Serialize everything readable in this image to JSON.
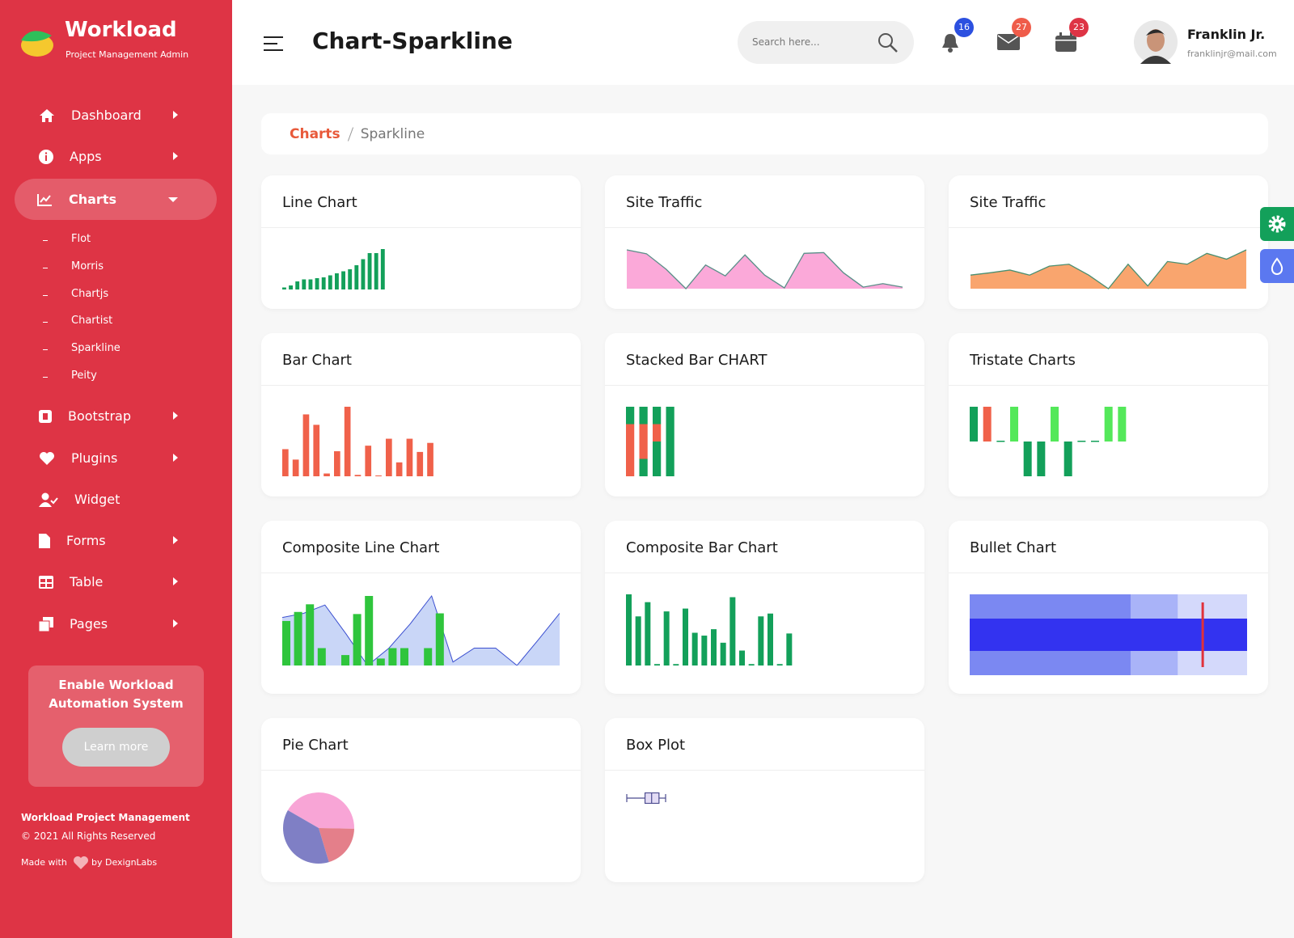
{
  "brand": {
    "name": "Workload",
    "tagline": "Project Management Admin"
  },
  "header": {
    "title": "Chart-Sparkline",
    "search_placeholder": "Search here...",
    "notifications": 16,
    "messages": 27,
    "calendar": 23,
    "user_name": "Franklin Jr.",
    "user_email": "franklinjr@mail.com"
  },
  "sidebar": {
    "menu": [
      "Dashboard",
      "Apps",
      "Charts",
      "Bootstrap",
      "Plugins",
      "Widget",
      "Forms",
      "Table",
      "Pages"
    ],
    "submenu": [
      "Flot",
      "Morris",
      "Chartjs",
      "Chartist",
      "Sparkline",
      "Peity"
    ],
    "promo_title": "Enable Workload Automation System",
    "promo_button": "Learn more",
    "footer_title": "Workload Project Management",
    "copyright": "© 2021 All Rights Reserved",
    "made_with": "Made with",
    "made_by": "by DexignLabs"
  },
  "breadcrumb": {
    "parent": "Charts",
    "current": "Sparkline"
  },
  "cards": [
    {
      "title": "Line Chart",
      "chart": {
        "type": "bar",
        "color": "#13a05a",
        "values": [
          0.5,
          1,
          2,
          2.5,
          2.5,
          2.8,
          3,
          3.5,
          4,
          4.5,
          5,
          6,
          7.5,
          9,
          9,
          10
        ]
      }
    },
    {
      "title": "Site Traffic",
      "chart": {
        "type": "area",
        "color": "#5a8f89",
        "fill": "#fba9d9",
        "values": [
          10,
          9,
          5,
          0,
          6.1,
          3.3,
          8.7,
          3.5,
          0.2,
          9.1,
          9.3,
          4.1,
          0.4,
          1.3,
          0.4
        ]
      }
    },
    {
      "title": "Site Traffic",
      "chart": {
        "type": "area",
        "color": "#4a8f70",
        "fill": "#f9a56e",
        "values": [
          3.5,
          4.1,
          4.8,
          3.5,
          5.8,
          6.3,
          3.5,
          0,
          6.3,
          0.7,
          7,
          6.3,
          9.1,
          7.6,
          10
        ]
      }
    },
    {
      "title": "Bar Chart",
      "chart": {
        "type": "bar",
        "color": "#f0614a",
        "values": [
          3.9,
          2.4,
          8.9,
          7.4,
          0.4,
          3.6,
          10,
          0.2,
          4.4,
          0.1,
          5.4,
          2,
          5.4,
          3.5,
          4.8
        ]
      }
    },
    {
      "title": "Stacked Bar CHART",
      "chart": {
        "type": "stacked",
        "series": [
          {
            "color": "#13a05a",
            "values": [
              0,
              2.5,
              5,
              10
            ]
          },
          {
            "color": "#f0614a",
            "values": [
              7.5,
              5,
              2.5,
              0
            ]
          },
          {
            "color": "#13a05a",
            "values": [
              2.5,
              2.5,
              2.5,
              0
            ]
          }
        ]
      }
    },
    {
      "title": "Tristate Charts",
      "chart": {
        "type": "tristate",
        "values": [
          1,
          1,
          0,
          1,
          -1,
          -1,
          1,
          -1,
          0,
          0,
          1,
          1
        ],
        "colors": [
          "#13a05a",
          "#f0614a",
          "#13a05a",
          "#54e85a",
          "#13a05a",
          "#13a05a",
          "#54e85a",
          "#13a05a",
          "#13a05a",
          "#13a05a",
          "#54e85a",
          "#54e85a"
        ]
      }
    },
    {
      "title": "Composite Line Chart",
      "chart": {
        "type": "composite",
        "series": [
          {
            "type": "area",
            "color": "#3b4fd0",
            "fill": "#c9d6f7",
            "values": [
              6.9,
              7.5,
              8.7,
              4.5,
              0,
              2.5,
              6,
              10,
              0.5,
              2.5,
              2.5,
              0,
              3.7,
              7.5
            ]
          },
          {
            "type": "bar",
            "color": "#2fc53c",
            "values": [
              6.4,
              7.7,
              8.8,
              2.5,
              0,
              1.5,
              7.4,
              10,
              1,
              2.5,
              2.5,
              0,
              2.5,
              7.5
            ]
          }
        ]
      }
    },
    {
      "title": "Composite Bar Chart",
      "chart": {
        "type": "bar",
        "color": "#13a05a",
        "values": [
          10,
          6.9,
          8.9,
          0.2,
          7.6,
          0.2,
          8,
          4.6,
          4.2,
          5.1,
          3.2,
          9.6,
          2.1,
          0.2,
          6.9,
          7.3,
          0.2,
          4.5
        ]
      }
    },
    {
      "title": "Bullet Chart",
      "chart": {
        "type": "bullet",
        "ranges": [
          10,
          7.5,
          5.8
        ],
        "range_colors": [
          "#d4d9fb",
          "#a9b3f8",
          "#7b88f2"
        ],
        "performance": 10,
        "performance_color": "#3333f0",
        "target": 8.4,
        "target_color": "#e0313b"
      }
    },
    {
      "title": "Pie Chart",
      "chart": {
        "type": "pie",
        "values": [
          42,
          20,
          38
        ],
        "colors": [
          "#f8a5d6",
          "#e47f8a",
          "#7f7fc5"
        ]
      }
    },
    {
      "title": "Box Plot",
      "chart": {
        "type": "box",
        "low": 0,
        "q1": 4.7,
        "median": 6.4,
        "q3": 8.3,
        "high": 10,
        "color": "#4b4b8f",
        "fill": "#e3dcf5"
      }
    }
  ]
}
